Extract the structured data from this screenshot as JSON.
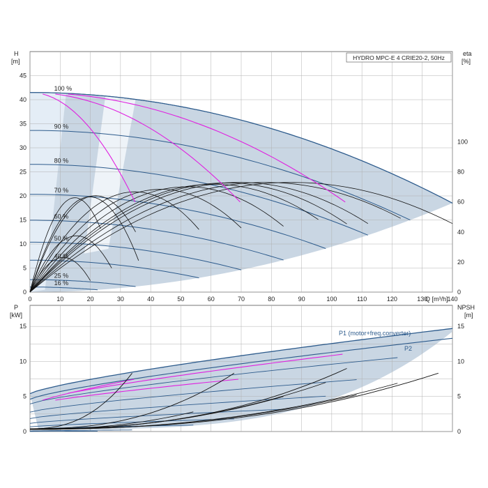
{
  "chart_data": {
    "type": "line",
    "title": "HYDRO MPC-E 4 CRIE20-2, 50Hz",
    "x_axis": {
      "label": "Q [m³/h]",
      "range": [
        0,
        140
      ],
      "ticks": [
        "0",
        "10",
        "20",
        "30",
        "40",
        "50",
        "60",
        "70",
        "80",
        "90",
        "100",
        "110",
        "120",
        "130",
        "140"
      ]
    },
    "top_panel": {
      "y_left": {
        "label": "H",
        "unit": "[m]",
        "range": [
          0,
          50
        ],
        "ticks": [
          "0",
          "5",
          "10",
          "15",
          "20",
          "25",
          "30",
          "35",
          "40",
          "45"
        ]
      },
      "y_right": {
        "label": "eta",
        "unit": "[%]",
        "range": [
          0,
          160
        ],
        "ticks": [
          "0",
          "20",
          "40",
          "60",
          "80",
          "100"
        ]
      },
      "speed_labels": [
        "100 %",
        "90 %",
        "80 %",
        "70 %",
        "60 %",
        "50 %",
        "40 %",
        "25 %",
        "16 %"
      ],
      "speed_fractions": [
        1.0,
        0.9,
        0.8,
        0.7,
        0.6,
        0.5,
        0.4,
        0.25,
        0.16
      ],
      "shutoff_head_100": 41.5,
      "curve_end_points_head": [
        {
          "speed": "100 %",
          "q": 140,
          "h": 18.5
        },
        {
          "speed": "90 %",
          "q": 126,
          "h": 15.5
        },
        {
          "speed": "80 %",
          "q": 112,
          "h": 12.5
        },
        {
          "speed": "70 %",
          "q": 98,
          "h": 9.5
        },
        {
          "speed": "60 %",
          "q": 84,
          "h": 7.0
        },
        {
          "speed": "50 %",
          "q": 70,
          "h": 4.6
        },
        {
          "speed": "40 %",
          "q": 56,
          "h": 3.0
        },
        {
          "speed": "25 %",
          "q": 35,
          "h": 1.1
        },
        {
          "speed": "16 %",
          "q": 24,
          "h": 0.5
        }
      ],
      "efficiency_peak_percent": 73,
      "pump_count_curves_magenta": [
        {
          "from": [
            0,
            41.5
          ],
          "to": [
            35,
            18.5
          ]
        },
        {
          "from": [
            0,
            41.5
          ],
          "to": [
            70,
            18.5
          ]
        },
        {
          "from": [
            0,
            41.5
          ],
          "to": [
            105,
            18.5
          ]
        }
      ]
    },
    "bottom_panel": {
      "y_left": {
        "label": "P",
        "unit": "[kW]",
        "range": [
          0,
          18
        ],
        "ticks": [
          "0",
          "5",
          "10",
          "15"
        ]
      },
      "y_right": {
        "label": "NPSH",
        "unit": "[m]",
        "range": [
          0,
          18
        ],
        "ticks": [
          "0",
          "5",
          "10",
          "15"
        ]
      },
      "series": [
        {
          "name": "P1 (motor+freq.converter)",
          "x": [
            0,
            140
          ],
          "y": [
            5.4,
            14.7
          ]
        },
        {
          "name": "P2",
          "x": [
            0,
            140
          ],
          "y": [
            4.6,
            13.3
          ]
        }
      ],
      "npsh_end_values": [
        {
          "q": 35,
          "npsh": 9.0
        },
        {
          "q": 70,
          "npsh": 9.0
        },
        {
          "q": 105,
          "npsh": 9.0
        },
        {
          "q": 140,
          "npsh": 9.0
        }
      ]
    },
    "grid": true,
    "colors": {
      "envelope_fill": "#c9d6e3",
      "speed_curve": "#2d5b8c",
      "efficiency_curve": "#111111",
      "pump_count_curve": "#e020e0",
      "grid": "#b0b0b0"
    }
  }
}
